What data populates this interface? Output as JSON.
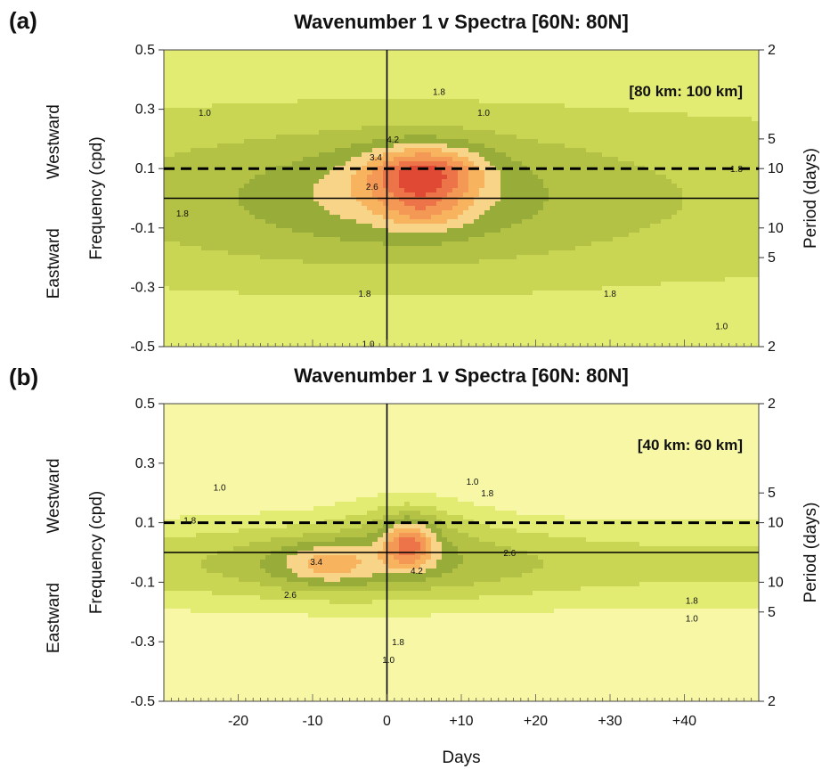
{
  "chart_data": [
    {
      "type": "heatmap",
      "panel": "(a)",
      "title": "Wavenumber 1 v Spectra [60N: 80N]",
      "annotation": "[80 km: 100 km]",
      "xlabel": "",
      "ylabel": "Frequency (cpd)",
      "ylabel_right": "Period (days)",
      "direction_labels": [
        "Westward",
        "Eastward"
      ],
      "xlim": [
        -30,
        50
      ],
      "ylim": [
        -0.5,
        0.5
      ],
      "x_ticks": [],
      "y_ticks": [
        {
          "v": 0.5,
          "label": "0.5"
        },
        {
          "v": 0.3,
          "label": "0.3"
        },
        {
          "v": 0.1,
          "label": "0.1"
        },
        {
          "v": -0.1,
          "label": "-0.1"
        },
        {
          "v": -0.3,
          "label": "-0.3"
        },
        {
          "v": -0.5,
          "label": "-0.5"
        }
      ],
      "period_ticks": [
        {
          "v": 0.5,
          "label": "2"
        },
        {
          "v": 0.2,
          "label": "5"
        },
        {
          "v": 0.1,
          "label": "10"
        },
        {
          "v": -0.1,
          "label": "10"
        },
        {
          "v": -0.2,
          "label": "5"
        },
        {
          "v": -0.5,
          "label": "2"
        }
      ],
      "reference_lines": {
        "dashed_frequency": 0.1,
        "zero_frequency": 0,
        "zero_day": 0
      },
      "contour_levels": [
        1.0,
        1.4,
        1.8,
        2.2,
        2.6,
        3.0,
        3.4,
        3.8,
        4.2,
        4.6,
        5.0
      ],
      "colors": [
        "#f7f7a6",
        "#e3ec72",
        "#c9d654",
        "#b3c244",
        "#98ac39",
        "#f8d488",
        "#f8b35f",
        "#f49855",
        "#ec7448",
        "#e04a35",
        "#cf3326"
      ],
      "contour_labels": [
        {
          "x": -24.5,
          "y": 0.29,
          "text": "1.0"
        },
        {
          "x": 13,
          "y": 0.29,
          "text": "1.0"
        },
        {
          "x": 7,
          "y": 0.36,
          "text": "1.8"
        },
        {
          "x": -27.5,
          "y": -0.05,
          "text": "1.8"
        },
        {
          "x": -3,
          "y": -0.32,
          "text": "1.8"
        },
        {
          "x": 30,
          "y": -0.32,
          "text": "1.8"
        },
        {
          "x": 47,
          "y": 0.1,
          "text": "1.8"
        },
        {
          "x": 45,
          "y": -0.43,
          "text": "1.0"
        },
        {
          "x": -2.5,
          "y": -0.49,
          "text": "1.0"
        },
        {
          "x": -2,
          "y": 0.04,
          "text": "2.6"
        },
        {
          "x": -1.5,
          "y": 0.14,
          "text": "3.4"
        },
        {
          "x": 0.8,
          "y": 0.2,
          "text": "4.2"
        }
      ],
      "peak": {
        "day": 5,
        "frequency": 0.09
      }
    },
    {
      "type": "heatmap",
      "panel": "(b)",
      "title": "Wavenumber 1 v Spectra [60N: 80N]",
      "annotation": "[40 km: 60 km]",
      "xlabel": "Days",
      "ylabel": "Frequency (cpd)",
      "ylabel_right": "Period (days)",
      "direction_labels": [
        "Westward",
        "Eastward"
      ],
      "xlim": [
        -30,
        50
      ],
      "ylim": [
        -0.5,
        0.5
      ],
      "x_ticks": [
        {
          "v": -20,
          "label": "-20"
        },
        {
          "v": -10,
          "label": "-10"
        },
        {
          "v": 0,
          "label": "0"
        },
        {
          "v": 10,
          "label": "+10"
        },
        {
          "v": 20,
          "label": "+20"
        },
        {
          "v": 30,
          "label": "+30"
        },
        {
          "v": 40,
          "label": "+40"
        }
      ],
      "y_ticks": [
        {
          "v": 0.5,
          "label": "0.5"
        },
        {
          "v": 0.3,
          "label": "0.3"
        },
        {
          "v": 0.1,
          "label": "0.1"
        },
        {
          "v": -0.1,
          "label": "-0.1"
        },
        {
          "v": -0.3,
          "label": "-0.3"
        },
        {
          "v": -0.5,
          "label": "-0.5"
        }
      ],
      "period_ticks": [
        {
          "v": 0.5,
          "label": "2"
        },
        {
          "v": 0.2,
          "label": "5"
        },
        {
          "v": 0.1,
          "label": "10"
        },
        {
          "v": -0.1,
          "label": "10"
        },
        {
          "v": -0.2,
          "label": "5"
        },
        {
          "v": -0.5,
          "label": "2"
        }
      ],
      "reference_lines": {
        "dashed_frequency": 0.1,
        "zero_frequency": 0,
        "zero_day": 0
      },
      "contour_levels": [
        1.0,
        1.4,
        1.8,
        2.2,
        2.6,
        3.0,
        3.4,
        3.8,
        4.2,
        4.6,
        5.0
      ],
      "colors": [
        "#f7f7a6",
        "#e3ec72",
        "#c9d654",
        "#b3c244",
        "#98ac39",
        "#f8d488",
        "#f8b35f",
        "#f49855",
        "#ec7448",
        "#e04a35",
        "#cf3326"
      ],
      "contour_labels": [
        {
          "x": -22.5,
          "y": 0.22,
          "text": "1.0"
        },
        {
          "x": -26.5,
          "y": 0.11,
          "text": "1.8"
        },
        {
          "x": 11.5,
          "y": 0.24,
          "text": "1.0"
        },
        {
          "x": 13.5,
          "y": 0.2,
          "text": "1.8"
        },
        {
          "x": 1.5,
          "y": -0.3,
          "text": "1.8"
        },
        {
          "x": 0.2,
          "y": -0.36,
          "text": "1.0"
        },
        {
          "x": 41,
          "y": -0.16,
          "text": "1.8"
        },
        {
          "x": 41,
          "y": -0.22,
          "text": "1.0"
        },
        {
          "x": -13,
          "y": -0.14,
          "text": "2.6"
        },
        {
          "x": -9.5,
          "y": -0.03,
          "text": "3.4"
        },
        {
          "x": 4,
          "y": -0.06,
          "text": "4.2"
        },
        {
          "x": 16.5,
          "y": 0.0,
          "text": "2.6"
        }
      ],
      "peak": {
        "day": 3,
        "frequency": 0.05
      }
    }
  ]
}
